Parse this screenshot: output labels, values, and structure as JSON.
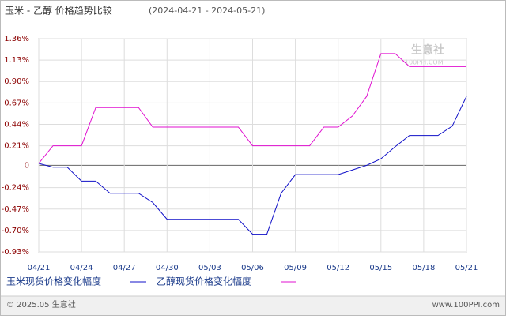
{
  "chart_data": {
    "type": "line",
    "title": "玉米 - 乙醇 价格趋势比较",
    "subtitle": "(2024-04-21 - 2024-05-21)",
    "categories": [
      "04/21",
      null,
      null,
      "04/24",
      null,
      null,
      "04/27",
      null,
      null,
      "04/30",
      null,
      null,
      "05/03",
      null,
      null,
      "05/06",
      null,
      null,
      "05/09",
      null,
      null,
      "05/12",
      null,
      null,
      "05/15",
      null,
      null,
      "05/18",
      null,
      null,
      "05/21"
    ],
    "series": [
      {
        "name": "玉米现货价格变化幅度",
        "color": "#1010c8",
        "values": [
          0.02,
          -0.02,
          -0.02,
          -0.17,
          -0.17,
          -0.3,
          -0.3,
          -0.3,
          -0.4,
          -0.58,
          -0.58,
          -0.58,
          -0.58,
          -0.58,
          -0.58,
          -0.74,
          -0.74,
          -0.3,
          -0.1,
          -0.1,
          -0.1,
          -0.1,
          -0.05,
          0.0,
          0.07,
          0.2,
          0.32,
          0.32,
          0.32,
          0.42,
          0.74
        ]
      },
      {
        "name": "乙醇现货价格变化幅度",
        "color": "#e010d0",
        "values": [
          0.02,
          0.21,
          0.21,
          0.21,
          0.62,
          0.62,
          0.62,
          0.62,
          0.41,
          0.41,
          0.41,
          0.41,
          0.41,
          0.41,
          0.41,
          0.21,
          0.21,
          0.21,
          0.21,
          0.21,
          0.41,
          0.41,
          0.53,
          0.74,
          1.2,
          1.2,
          1.06,
          1.06,
          1.06,
          1.06,
          1.06
        ]
      }
    ],
    "ylim": [
      -0.93,
      1.36
    ],
    "yticks": [
      {
        "value": -0.93,
        "label": "-0.93%"
      },
      {
        "value": -0.7,
        "label": "-0.70%"
      },
      {
        "value": -0.47,
        "label": "-0.47%"
      },
      {
        "value": -0.24,
        "label": "-0.24%"
      },
      0,
      {
        "value": 0.21,
        "label": "0.21%"
      },
      {
        "value": 0.44,
        "label": "0.44%"
      },
      {
        "value": 0.67,
        "label": "0.67%"
      },
      {
        "value": 0.9,
        "label": "0.90%"
      },
      {
        "value": 1.13,
        "label": "1.13%"
      },
      {
        "value": 1.36,
        "label": "1.36%"
      }
    ],
    "grid": true,
    "watermark": "生意社",
    "watermark_sub": "100PPI.COM",
    "footer_left": "© 2025.05 生意社",
    "footer_right": "www.100PPI.com"
  }
}
